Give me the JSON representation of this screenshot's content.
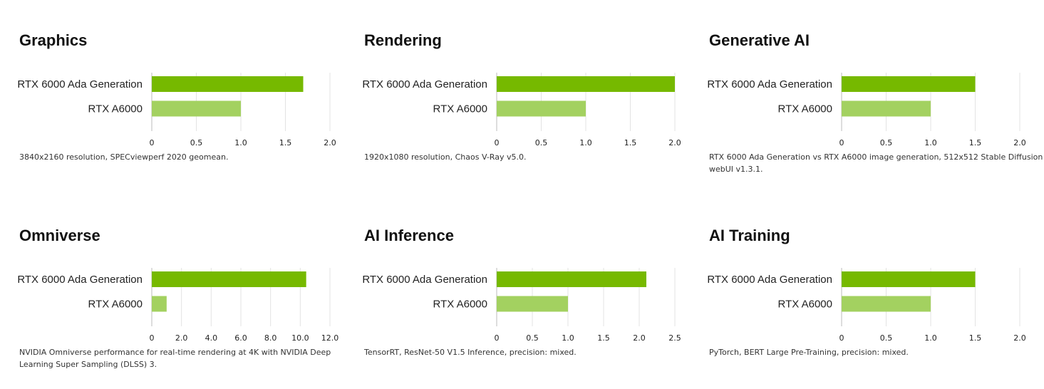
{
  "chart_data": [
    {
      "type": "bar",
      "orientation": "horizontal",
      "title": "Graphics",
      "categories": [
        "RTX 6000 Ada Generation",
        "RTX A6000"
      ],
      "values": [
        1.7,
        1.0
      ],
      "xlim": [
        0,
        2.0
      ],
      "xticks": [
        "0",
        "0.5",
        "1.0",
        "1.5",
        "2.0"
      ],
      "grid": "vertical",
      "colors": [
        "#76b900",
        "#a3d160"
      ],
      "note": "3840x2160 resolution, SPECviewperf 2020 geomean."
    },
    {
      "type": "bar",
      "orientation": "horizontal",
      "title": "Rendering",
      "categories": [
        "RTX 6000 Ada Generation",
        "RTX A6000"
      ],
      "values": [
        2.0,
        1.0
      ],
      "xlim": [
        0,
        2.0
      ],
      "xticks": [
        "0",
        "0.5",
        "1.0",
        "1.5",
        "2.0"
      ],
      "grid": "vertical",
      "colors": [
        "#76b900",
        "#a3d160"
      ],
      "note": "1920x1080 resolution, Chaos V-Ray v5.0."
    },
    {
      "type": "bar",
      "orientation": "horizontal",
      "title": "Generative AI",
      "categories": [
        "RTX 6000 Ada Generation",
        "RTX A6000"
      ],
      "values": [
        1.5,
        1.0
      ],
      "xlim": [
        0,
        2.0
      ],
      "xticks": [
        "0",
        "0.5",
        "1.0",
        "1.5",
        "2.0"
      ],
      "grid": "vertical",
      "colors": [
        "#76b900",
        "#a3d160"
      ],
      "note": "RTX 6000 Ada Generation vs RTX A6000 image generation, 512x512 Stable Diffusion webUI v1.3.1."
    },
    {
      "type": "bar",
      "orientation": "horizontal",
      "title": "Omniverse",
      "categories": [
        "RTX 6000 Ada Generation",
        "RTX A6000"
      ],
      "values": [
        10.4,
        1.0
      ],
      "xlim": [
        0,
        12.0
      ],
      "xticks": [
        "0",
        "2.0",
        "4.0",
        "6.0",
        "8.0",
        "10.0",
        "12.0"
      ],
      "grid": "vertical",
      "colors": [
        "#76b900",
        "#a3d160"
      ],
      "note": "NVIDIA Omniverse performance for real-time rendering at 4K with NVIDIA Deep Learning Super Sampling (DLSS) 3."
    },
    {
      "type": "bar",
      "orientation": "horizontal",
      "title": "AI Inference",
      "categories": [
        "RTX 6000 Ada Generation",
        "RTX A6000"
      ],
      "values": [
        2.1,
        1.0
      ],
      "xlim": [
        0,
        2.5
      ],
      "xticks": [
        "0",
        "0.5",
        "1.0",
        "1.5",
        "2.0",
        "2.5"
      ],
      "grid": "vertical",
      "colors": [
        "#76b900",
        "#a3d160"
      ],
      "note": "TensorRT, ResNet-50 V1.5 Inference, precision: mixed."
    },
    {
      "type": "bar",
      "orientation": "horizontal",
      "title": "AI Training",
      "categories": [
        "RTX 6000 Ada Generation",
        "RTX A6000"
      ],
      "values": [
        1.5,
        1.0
      ],
      "xlim": [
        0,
        2.0
      ],
      "xticks": [
        "0",
        "0.5",
        "1.0",
        "1.5",
        "2.0"
      ],
      "grid": "vertical",
      "colors": [
        "#76b900",
        "#a3d160"
      ],
      "note": "PyTorch, BERT Large Pre-Training, precision: mixed."
    }
  ]
}
